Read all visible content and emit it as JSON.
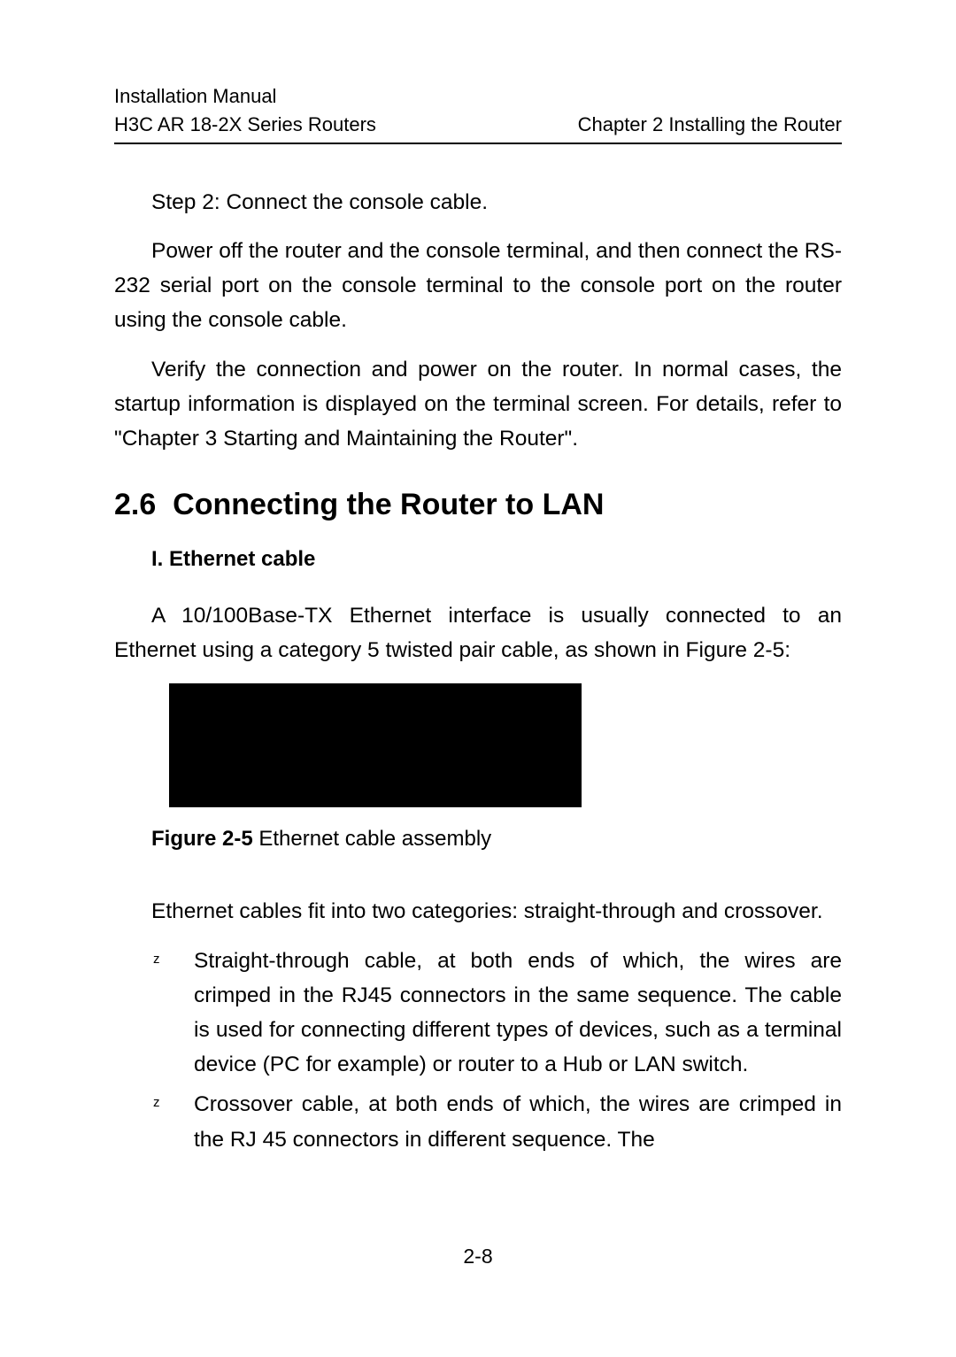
{
  "header": {
    "line1_left": "Installation Manual",
    "line2_left": "H3C AR 18-2X Series Routers",
    "line2_right": "Chapter 2  Installing the Router"
  },
  "body": {
    "step_line": "Step 2: Connect the console cable.",
    "para1": "Power off the router and the console terminal, and then connect the RS-232 serial port on the console terminal to the console port on the router using the console cable.",
    "para2": "Verify the connection and power on the router. In normal cases, the startup information is displayed on the terminal screen. For details, refer to \"Chapter 3 Starting and Maintaining the Router\"."
  },
  "section": {
    "number": "2.6",
    "title": "Connecting the Router to LAN"
  },
  "subsection": {
    "label": "I. Ethernet cable"
  },
  "ethernet": {
    "para1": "A 10/100Base-TX Ethernet interface is usually connected to an Ethernet using a category 5 twisted pair cable, as shown in Figure 2-5:",
    "figure_label": "Figure 2-5 ",
    "figure_caption": "Ethernet cable assembly",
    "para2": "Ethernet cables fit into two categories: straight-through and crossover."
  },
  "bullets": {
    "marker": "z",
    "item1": "Straight-through cable, at both ends of which, the wires are crimped in the RJ45 connectors in the same sequence. The cable is used for connecting different types of devices, such as a terminal device (PC for example) or router to a Hub or LAN switch.",
    "item2": "Crossover cable, at both ends of which, the wires are crimped in the RJ 45 connectors in different sequence. The"
  },
  "page_number": "2-8",
  "colors": {
    "text": "#000000",
    "background": "#ffffff",
    "figure_fill": "#000000"
  }
}
